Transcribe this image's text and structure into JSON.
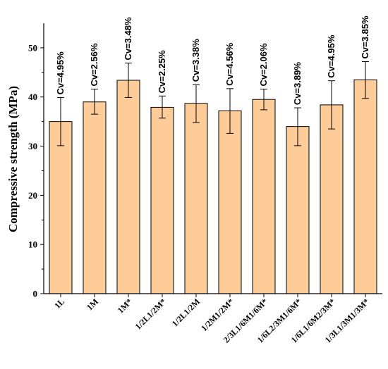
{
  "chart_data": {
    "type": "bar",
    "ylabel": "Compressive strength (MPa)",
    "ylim": [
      0,
      55
    ],
    "yticks": [
      0,
      10,
      20,
      30,
      40,
      50
    ],
    "bar_color": "#fdcc99",
    "bar_stroke": "#000000",
    "categories": [
      "1L",
      "1M",
      "1M*",
      "1/2L1/2M*",
      "1/2L1/2M",
      "1/2M1/2M*",
      "2/3L1/6M1/6M*",
      "1/6L2/3M1/6M*",
      "1/6L1/6M2/3M*",
      "1/3L1/3M1/3M*"
    ],
    "values": [
      35.0,
      39.0,
      43.4,
      37.9,
      38.7,
      37.2,
      39.5,
      34.0,
      38.4,
      43.5
    ],
    "error_low": [
      30.1,
      36.5,
      39.9,
      35.7,
      34.8,
      32.6,
      37.4,
      30.1,
      33.5,
      39.7
    ],
    "error_high": [
      39.9,
      41.6,
      46.9,
      40.2,
      42.5,
      41.7,
      41.6,
      37.8,
      43.3,
      47.2
    ],
    "annotations": [
      "Cv=4.95%",
      "Cv=2.56%",
      "Cv=3.48%",
      "Cv=2.25%",
      "Cv=3.38%",
      "Cv=4.56%",
      "Cv=2.06%",
      "Cv=3.89%",
      "Cv=4.95%",
      "Cv=3.85%"
    ]
  }
}
